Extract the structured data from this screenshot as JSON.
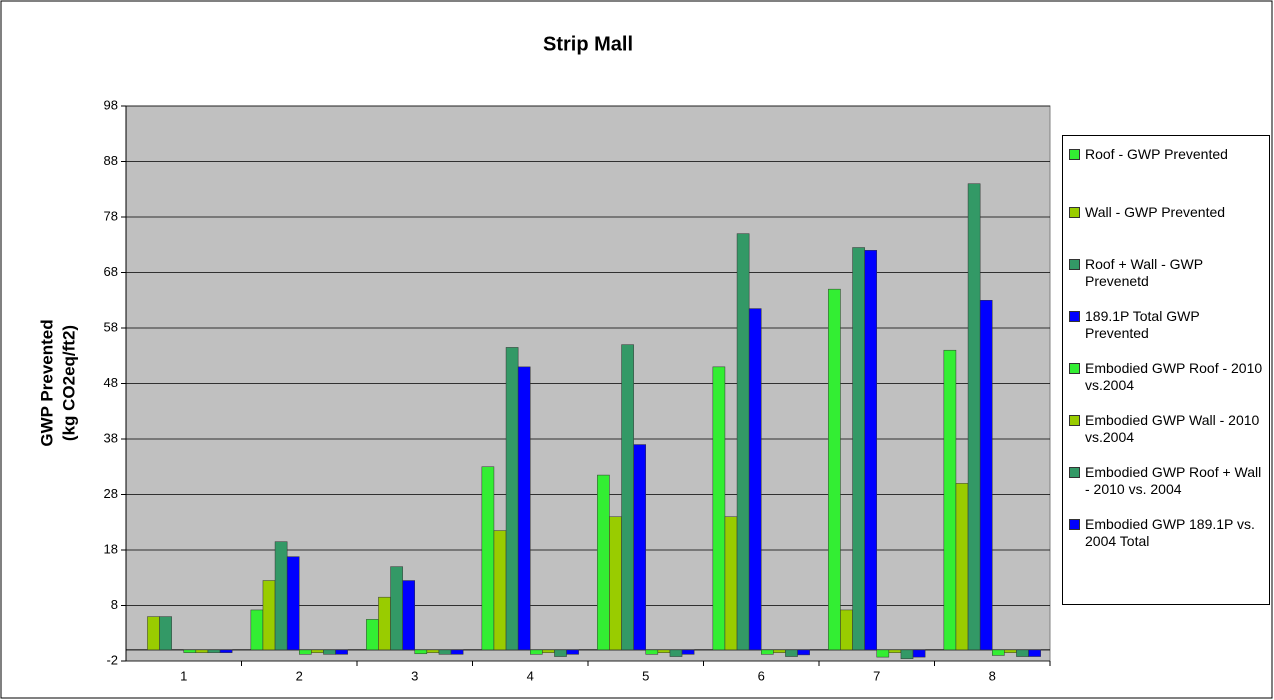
{
  "chart_data": {
    "type": "bar",
    "title": "Strip Mall",
    "ylabel": [
      "GWP Prevented",
      "(kg CO2eq/ft2)"
    ],
    "categories": [
      "1",
      "2",
      "3",
      "4",
      "5",
      "6",
      "7",
      "8"
    ],
    "series": [
      {
        "name": "Roof - GWP Prevented",
        "color": "#33ee33",
        "values": [
          0,
          7.2,
          5.5,
          33,
          31.5,
          51,
          65,
          54
        ]
      },
      {
        "name": "Wall - GWP Prevented",
        "color": "#99cc00",
        "values": [
          6,
          12.5,
          9.5,
          21.5,
          24,
          24,
          7.2,
          30
        ]
      },
      {
        "name": "Roof + Wall - GWP Prevenetd",
        "color": "#339966",
        "values": [
          6,
          19.5,
          15,
          54.5,
          55,
          75,
          72.5,
          84
        ]
      },
      {
        "name": "189.1P Total GWP Prevented",
        "color": "#0000ff",
        "values": [
          0,
          16.8,
          12.5,
          51,
          37,
          61.5,
          72,
          63
        ]
      },
      {
        "name": "Embodied GWP Roof - 2010 vs.2004",
        "color": "#33ee33",
        "values": [
          -0.5,
          -0.8,
          -0.7,
          -0.8,
          -0.8,
          -0.8,
          -1.3,
          -1
        ]
      },
      {
        "name": "Embodied GWP Wall - 2010 vs.2004",
        "color": "#99cc00",
        "values": [
          -0.5,
          -0.5,
          -0.5,
          -0.5,
          -0.5,
          -0.5,
          -0.5,
          -0.5
        ]
      },
      {
        "name": "Embodied GWP Roof + Wall - 2010 vs. 2004",
        "color": "#339966",
        "values": [
          -0.5,
          -0.8,
          -0.8,
          -1.2,
          -1.2,
          -1.2,
          -1.6,
          -1.2
        ]
      },
      {
        "name": "Embodied GWP 189.1P vs. 2004 Total",
        "color": "#0000ff",
        "values": [
          -0.5,
          -0.8,
          -0.8,
          -0.8,
          -0.8,
          -0.9,
          -1.3,
          -1.2
        ]
      }
    ],
    "ylim": [
      -2,
      98
    ],
    "yticks": [
      -2,
      8,
      18,
      28,
      38,
      48,
      58,
      68,
      78,
      88,
      98
    ],
    "grid": true,
    "legend": "right"
  }
}
